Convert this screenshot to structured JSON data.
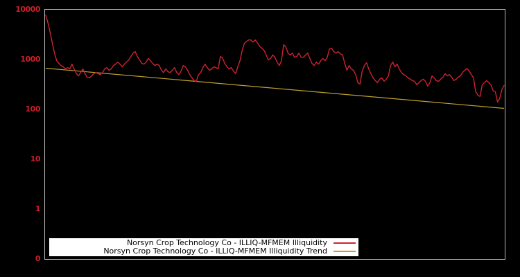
{
  "chart_data": {
    "type": "line",
    "title": "",
    "xlabel": "",
    "ylabel": "",
    "y_scale": "log",
    "y_ticks": [
      "10000",
      "1000",
      "100",
      "10",
      "1",
      "0"
    ],
    "ylim": [
      0.1,
      10000
    ],
    "x_tick_labels_visible": false,
    "grid": false,
    "legend_position": "inside-bottom-left",
    "background_color": "#000000",
    "axis_border_color": "#bdbdbd",
    "tick_label_color": "#c8202a",
    "series": [
      {
        "name": "Norsyn Crop Technology Co - ILLIQ-MFMEM Illiquidity",
        "color": "#cd2330",
        "values": [
          7800,
          5500,
          3500,
          2170,
          1350,
          950,
          840,
          760,
          715,
          650,
          690,
          650,
          810,
          650,
          520,
          470,
          550,
          650,
          520,
          440,
          430,
          470,
          520,
          550,
          520,
          500,
          550,
          650,
          690,
          610,
          650,
          760,
          810,
          890,
          810,
          715,
          810,
          890,
          980,
          1150,
          1350,
          1440,
          1150,
          980,
          840,
          810,
          890,
          1050,
          950,
          840,
          760,
          810,
          760,
          610,
          550,
          650,
          570,
          550,
          610,
          690,
          550,
          500,
          590,
          760,
          715,
          610,
          500,
          430,
          378,
          366,
          500,
          550,
          690,
          810,
          690,
          610,
          650,
          715,
          690,
          650,
          1150,
          1080,
          840,
          715,
          650,
          690,
          590,
          520,
          715,
          950,
          1530,
          2100,
          2320,
          2470,
          2470,
          2240,
          2470,
          2170,
          1850,
          1690,
          1530,
          1230,
          980,
          1050,
          1230,
          1110,
          890,
          760,
          950,
          1980,
          1800,
          1350,
          1230,
          1350,
          1110,
          1150,
          1350,
          1110,
          1110,
          1230,
          1350,
          1050,
          840,
          760,
          890,
          810,
          950,
          1050,
          950,
          1110,
          1630,
          1690,
          1440,
          1350,
          1440,
          1310,
          1230,
          840,
          610,
          760,
          650,
          610,
          500,
          344,
          322,
          590,
          760,
          864,
          650,
          520,
          430,
          378,
          344,
          403,
          430,
          366,
          403,
          470,
          760,
          890,
          715,
          810,
          650,
          550,
          500,
          470,
          430,
          403,
          378,
          366,
          312,
          344,
          378,
          403,
          366,
          293,
          344,
          470,
          430,
          378,
          366,
          403,
          443,
          520,
          470,
          500,
          443,
          378,
          403,
          443,
          470,
          550,
          610,
          660,
          590,
          500,
          430,
          227,
          194,
          182,
          312,
          344,
          378,
          344,
          312,
          235,
          227,
          141,
          165,
          250,
          302
        ]
      },
      {
        "name": "Norsyn Crop Technology Co - ILLIQ-MFMEM Illiquidity Trend",
        "color": "#bfa12c",
        "trend_endpoints": [
          670,
          105
        ],
        "style": "linear-in-log-space"
      }
    ]
  }
}
